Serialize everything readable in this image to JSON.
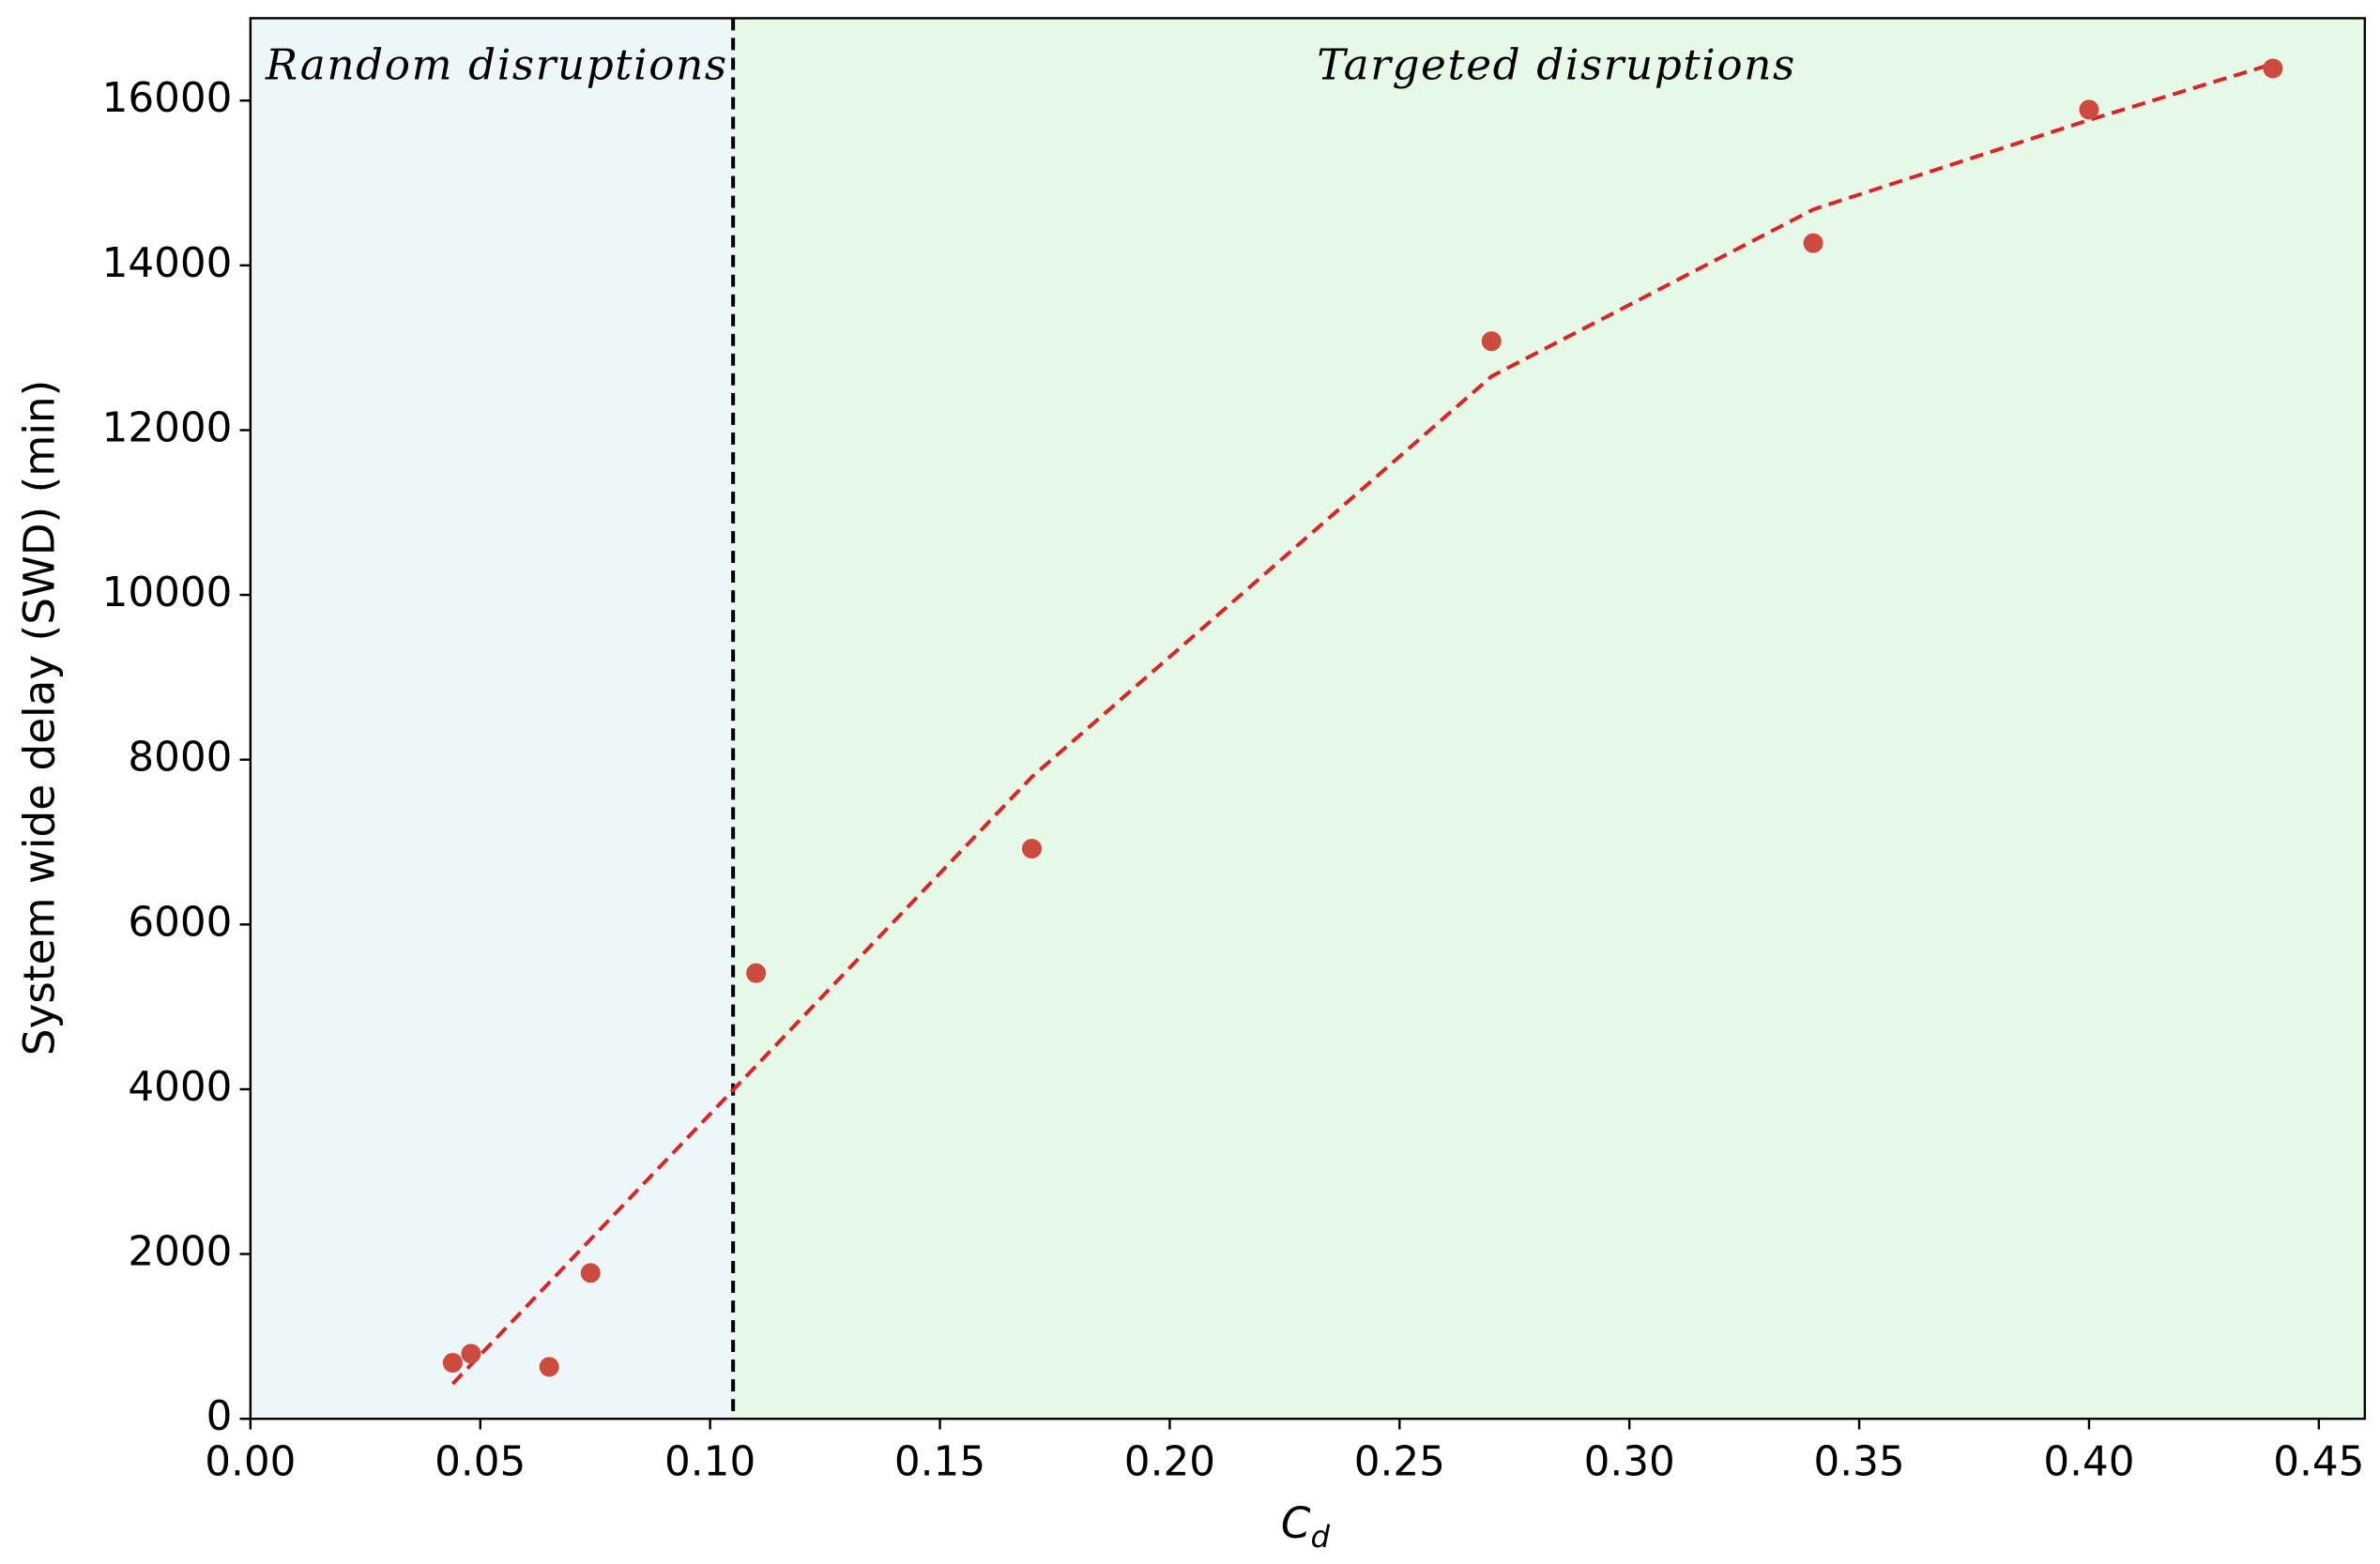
{
  "chart_data": {
    "type": "scatter",
    "ylabel": "System wide delay (SWD) (min)",
    "xlabel": {
      "text": "C",
      "subscript": "d"
    },
    "xlim": [
      0,
      0.46
    ],
    "ylim": [
      0,
      17000
    ],
    "xticks": [
      {
        "value": 0,
        "label": "0.00"
      },
      0.05,
      {
        "value": 0.1,
        "label": "0.10"
      },
      0.15,
      {
        "value": 0.2,
        "label": "0.20"
      },
      0.25,
      {
        "value": 0.3,
        "label": "0.30"
      },
      0.35,
      {
        "value": 0.4,
        "label": "0.40"
      },
      0.45
    ],
    "yticks": [
      0,
      2000,
      4000,
      6000,
      8000,
      10000,
      12000,
      14000,
      16000
    ],
    "grid": false,
    "regions": [
      {
        "label": "Random disruptions",
        "xrange": [
          0,
          0.105
        ],
        "color": "#edf6f9"
      },
      {
        "label": "Targeted disruptions",
        "xrange": [
          0.105,
          0.46
        ],
        "color": "#e6f8e6"
      }
    ],
    "divider": 0.105,
    "series": [
      {
        "type": "scatter",
        "color": "#cd4a3f",
        "x": [
          0.044,
          0.048,
          0.065,
          0.074,
          0.11,
          0.17,
          0.27,
          0.34,
          0.4,
          0.44
        ],
        "values": [
          680,
          790,
          630,
          1770,
          5410,
          6920,
          13080,
          14270,
          15890,
          16390
        ]
      },
      {
        "type": "line",
        "color": "#d62728",
        "linestyle": "dashed",
        "x": [
          0.044,
          0.17,
          0.27,
          0.34,
          0.4,
          0.44
        ],
        "values": [
          424,
          7790,
          12652,
          14678,
          15764,
          16445
        ]
      }
    ]
  }
}
